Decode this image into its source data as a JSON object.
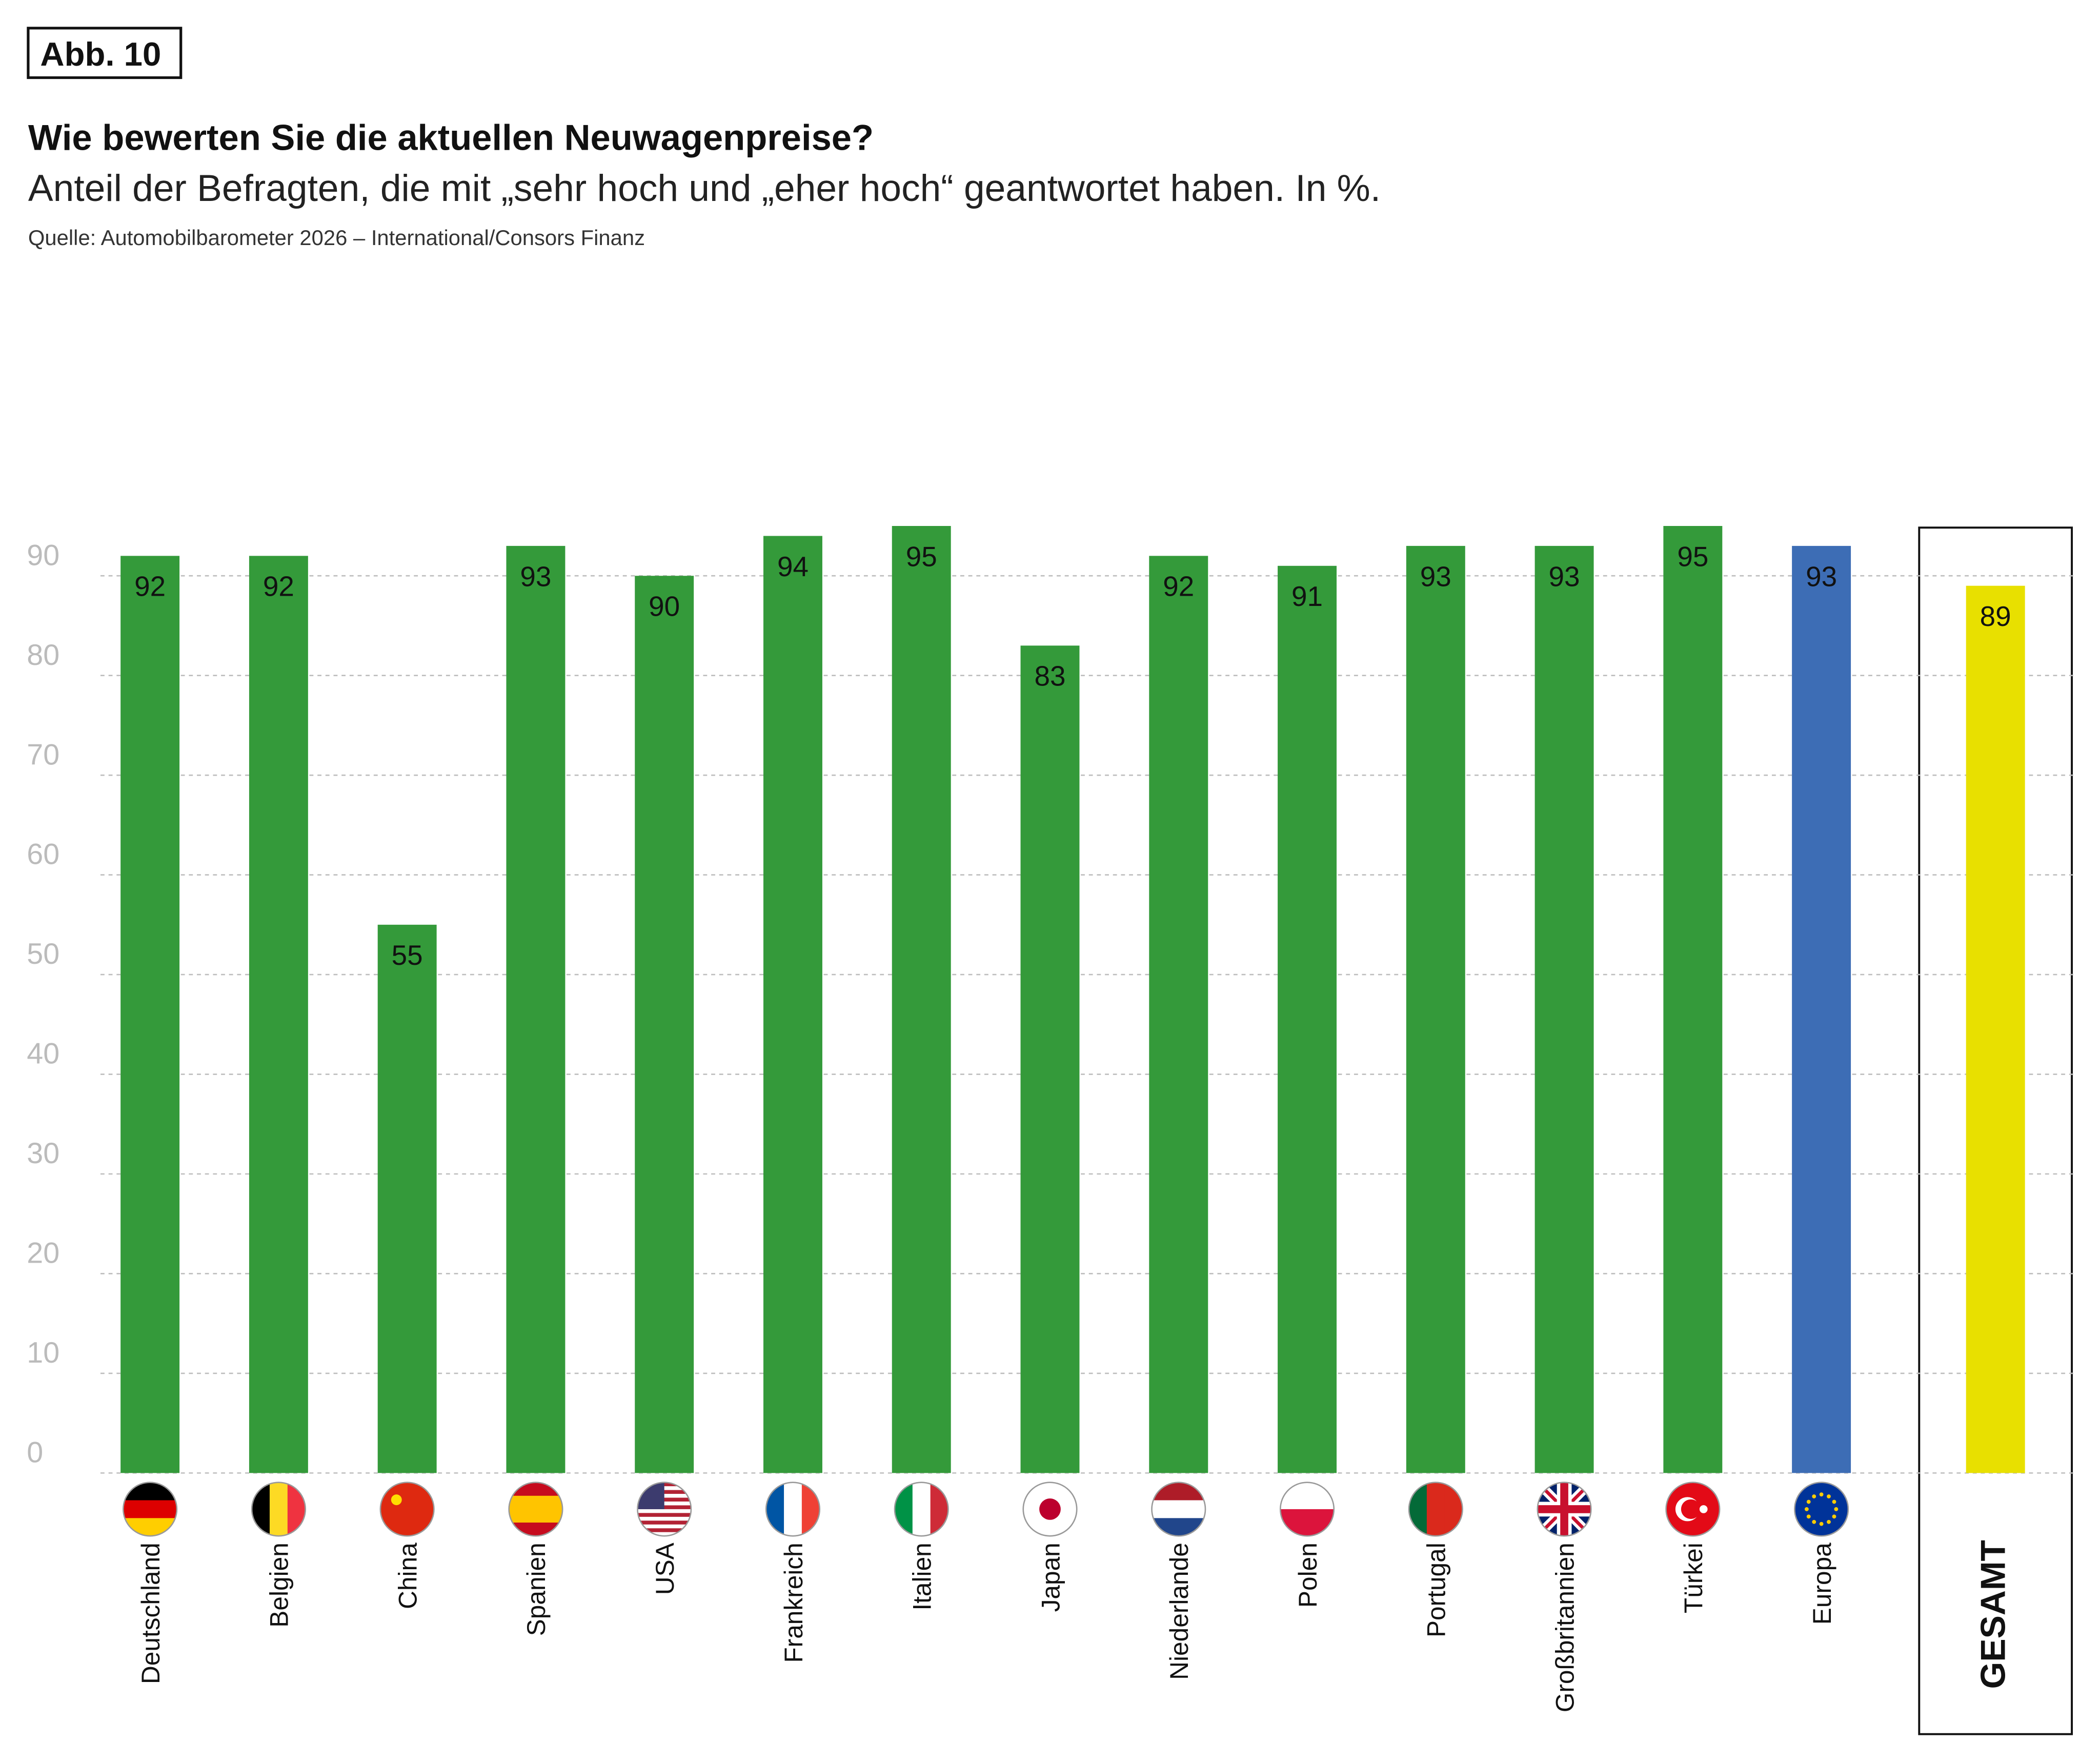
{
  "chart_data": {
    "type": "bar",
    "figure_label": "Abb. 10",
    "title": "Wie bewerten Sie die aktuellen Neuwagenpreise?",
    "subtitle": "Anteil der Befragten, die mit „sehr hoch und „eher hoch“ geantwortet haben. In %.",
    "source": "Quelle: Automobilbarometer 2026 – International/Consors Finanz",
    "categories": [
      "Deutschland",
      "Belgien",
      "China",
      "Spanien",
      "USA",
      "Frankreich",
      "Italien",
      "Japan",
      "Niederlande",
      "Polen",
      "Portugal",
      "Großbritannien",
      "Türkei",
      "Europa",
      "GESAMT"
    ],
    "values": [
      92,
      92,
      55,
      93,
      90,
      94,
      95,
      83,
      92,
      91,
      93,
      93,
      95,
      93,
      89
    ],
    "colors": [
      "#349a3a",
      "#349a3a",
      "#349a3a",
      "#349a3a",
      "#349a3a",
      "#349a3a",
      "#349a3a",
      "#349a3a",
      "#349a3a",
      "#349a3a",
      "#349a3a",
      "#349a3a",
      "#349a3a",
      "#3d6db5",
      "#e8e000"
    ],
    "ylim": [
      0,
      90
    ],
    "yticks": [
      0,
      10,
      20,
      30,
      40,
      50,
      60,
      70,
      80,
      90
    ],
    "grid": true
  }
}
